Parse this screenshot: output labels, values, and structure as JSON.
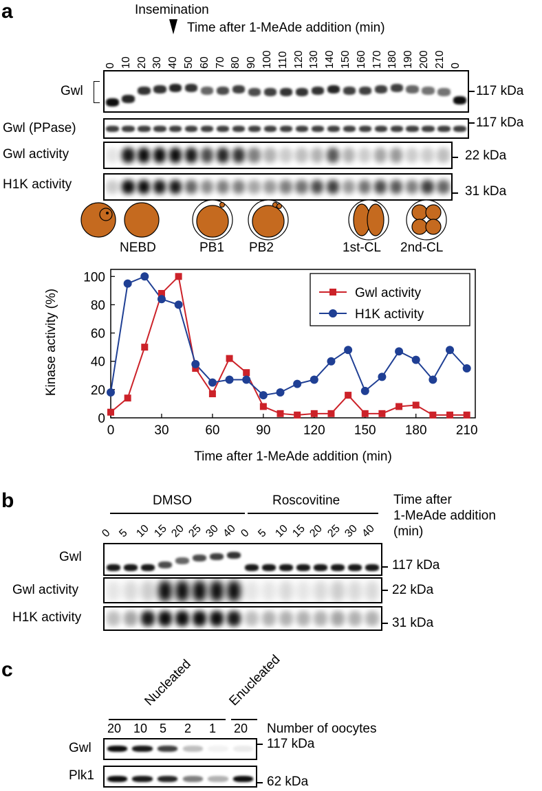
{
  "panels": {
    "a": "a",
    "b": "b",
    "c": "c"
  },
  "panel_a": {
    "insemination_label": "Insemination",
    "time_header": "Time after 1-MeAde addition (min)",
    "lanes": [
      "0",
      "10",
      "20",
      "30",
      "40",
      "50",
      "60",
      "70",
      "80",
      "90",
      "100",
      "110",
      "120",
      "130",
      "140",
      "150",
      "160",
      "170",
      "180",
      "190",
      "200",
      "210",
      "0"
    ],
    "rows": [
      {
        "name": "Gwl",
        "kda": "117 kDa"
      },
      {
        "name": "Gwl (PPase)",
        "kda": "117 kDa"
      },
      {
        "name": "Gwl activity",
        "kda": "22 kDa"
      },
      {
        "name": "H1K activity",
        "kda": "31 kDa"
      }
    ],
    "stages": [
      "NEBD",
      "PB1",
      "PB2",
      "1st-CL",
      "2nd-CL"
    ]
  },
  "chart_data": {
    "type": "line",
    "xlabel": "Time after 1-MeAde addition (min)",
    "ylabel": "Kinase activity (%)",
    "xlim": [
      0,
      215
    ],
    "ylim": [
      0,
      105
    ],
    "xticks": [
      "0",
      "30",
      "60",
      "90",
      "120",
      "150",
      "180",
      "210"
    ],
    "yticks": [
      "0",
      "20",
      "40",
      "60",
      "80",
      "100"
    ],
    "legend_position": "top-right",
    "x": [
      0,
      10,
      20,
      30,
      40,
      50,
      60,
      70,
      80,
      90,
      100,
      110,
      120,
      130,
      140,
      150,
      160,
      170,
      180,
      190,
      200,
      210
    ],
    "series": [
      {
        "name": "Gwl activity",
        "color": "#cc2229",
        "marker": "square",
        "values": [
          4,
          14,
          50,
          88,
          100,
          35,
          17,
          42,
          32,
          8,
          3,
          2,
          3,
          3,
          16,
          3,
          3,
          8,
          9,
          2,
          2,
          2
        ]
      },
      {
        "name": "H1K activity",
        "color": "#1f3f94",
        "marker": "circle",
        "values": [
          18,
          95,
          100,
          84,
          80,
          38,
          25,
          27,
          27,
          16,
          18,
          24,
          27,
          40,
          48,
          19,
          29,
          47,
          41,
          27,
          48,
          35
        ]
      }
    ]
  },
  "panel_b": {
    "group1": "DMSO",
    "group2": "Roscovitine",
    "time_header": [
      "Time after",
      "1-MeAde addition",
      "(min)"
    ],
    "lanes": [
      "0",
      "5",
      "10",
      "15",
      "20",
      "25",
      "30",
      "40",
      "0",
      "5",
      "10",
      "15",
      "20",
      "25",
      "30",
      "40"
    ],
    "rows": [
      {
        "name": "Gwl",
        "kda": "117 kDa"
      },
      {
        "name": "Gwl activity",
        "kda": "22 kDa"
      },
      {
        "name": "H1K activity",
        "kda": "31 kDa"
      }
    ]
  },
  "panel_c": {
    "group1": "Nucleated",
    "group2": "Enucleated",
    "count_header": "Number of oocytes",
    "lanes": [
      "20",
      "10",
      "5",
      "2",
      "1",
      "20"
    ],
    "rows": [
      {
        "name": "Gwl",
        "kda": "117 kDa"
      },
      {
        "name": "Plk1",
        "kda": "62 kDa"
      }
    ]
  }
}
